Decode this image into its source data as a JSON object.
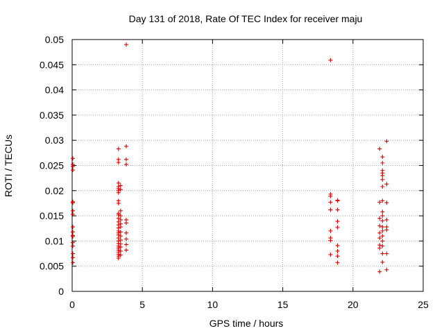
{
  "chart_data": {
    "type": "scatter",
    "title": "Day 131 of 2018, Rate Of TEC Index for receiver maju",
    "xlabel": "GPS time / hours",
    "ylabel": "ROTI / TECUs",
    "xlim": [
      0,
      25
    ],
    "ylim": [
      0,
      0.05
    ],
    "xticks": [
      0,
      5,
      10,
      15,
      20,
      25
    ],
    "xtick_labels": [
      "0",
      "5",
      "10",
      "15",
      "20",
      "25"
    ],
    "yticks": [
      0,
      0.005,
      0.01,
      0.015,
      0.02,
      0.025,
      0.03,
      0.035,
      0.04,
      0.045,
      0.05
    ],
    "ytick_labels": [
      "0",
      "0.005",
      "0.01",
      "0.015",
      "0.02",
      "0.025",
      "0.03",
      "0.035",
      "0.04",
      "0.045",
      "0.05"
    ],
    "grid": true,
    "marker": "+",
    "color": "#dd0000",
    "points": [
      [
        0.05,
        0.0264
      ],
      [
        0.05,
        0.0252
      ],
      [
        0.05,
        0.0248
      ],
      [
        0.05,
        0.0241
      ],
      [
        0.05,
        0.0178
      ],
      [
        0.05,
        0.0176
      ],
      [
        0.05,
        0.016
      ],
      [
        0.05,
        0.0153
      ],
      [
        0.05,
        0.0128
      ],
      [
        0.05,
        0.0118
      ],
      [
        0.05,
        0.0111
      ],
      [
        0.05,
        0.0109
      ],
      [
        0.05,
        0.0097
      ],
      [
        0.05,
        0.009
      ],
      [
        0.05,
        0.0075
      ],
      [
        0.05,
        0.0067
      ],
      [
        0.05,
        0.0057
      ],
      [
        3.3,
        0.0283
      ],
      [
        3.3,
        0.0262
      ],
      [
        3.3,
        0.0256
      ],
      [
        3.3,
        0.0215
      ],
      [
        3.3,
        0.0208
      ],
      [
        3.3,
        0.0204
      ],
      [
        3.3,
        0.02
      ],
      [
        3.3,
        0.0196
      ],
      [
        3.3,
        0.018
      ],
      [
        3.3,
        0.0175
      ],
      [
        3.3,
        0.0155
      ],
      [
        3.3,
        0.0152
      ],
      [
        3.3,
        0.0145
      ],
      [
        3.3,
        0.0138
      ],
      [
        3.3,
        0.0132
      ],
      [
        3.3,
        0.0126
      ],
      [
        3.3,
        0.012
      ],
      [
        3.3,
        0.0116
      ],
      [
        3.3,
        0.0112
      ],
      [
        3.3,
        0.0106
      ],
      [
        3.3,
        0.01
      ],
      [
        3.3,
        0.0095
      ],
      [
        3.3,
        0.009
      ],
      [
        3.3,
        0.0086
      ],
      [
        3.3,
        0.0082
      ],
      [
        3.3,
        0.0078
      ],
      [
        3.3,
        0.0074
      ],
      [
        3.3,
        0.007
      ],
      [
        3.3,
        0.0066
      ],
      [
        3.45,
        0.021
      ],
      [
        3.45,
        0.0202
      ],
      [
        3.45,
        0.016
      ],
      [
        3.45,
        0.015
      ],
      [
        3.45,
        0.0142
      ],
      [
        3.45,
        0.0134
      ],
      [
        3.45,
        0.0128
      ],
      [
        3.45,
        0.0118
      ],
      [
        3.45,
        0.011
      ],
      [
        3.45,
        0.0102
      ],
      [
        3.45,
        0.0094
      ],
      [
        3.45,
        0.0088
      ],
      [
        3.45,
        0.008
      ],
      [
        3.45,
        0.0072
      ],
      [
        3.85,
        0.049
      ],
      [
        3.85,
        0.0288
      ],
      [
        3.85,
        0.0262
      ],
      [
        3.85,
        0.0252
      ],
      [
        3.85,
        0.0142
      ],
      [
        3.85,
        0.0136
      ],
      [
        3.85,
        0.0116
      ],
      [
        3.85,
        0.0104
      ],
      [
        3.85,
        0.0093
      ],
      [
        3.85,
        0.0082
      ],
      [
        18.4,
        0.0459
      ],
      [
        18.4,
        0.0193
      ],
      [
        18.4,
        0.0189
      ],
      [
        18.4,
        0.0177
      ],
      [
        18.4,
        0.0162
      ],
      [
        18.4,
        0.012
      ],
      [
        18.4,
        0.0106
      ],
      [
        18.4,
        0.0101
      ],
      [
        18.4,
        0.0073
      ],
      [
        18.9,
        0.0181
      ],
      [
        18.9,
        0.018
      ],
      [
        18.9,
        0.0162
      ],
      [
        18.9,
        0.0139
      ],
      [
        18.9,
        0.0127
      ],
      [
        18.9,
        0.0091
      ],
      [
        18.9,
        0.008
      ],
      [
        18.9,
        0.007
      ],
      [
        18.9,
        0.0057
      ],
      [
        21.9,
        0.0283
      ],
      [
        21.9,
        0.0177
      ],
      [
        21.9,
        0.0145
      ],
      [
        21.9,
        0.013
      ],
      [
        21.9,
        0.0116
      ],
      [
        21.9,
        0.0106
      ],
      [
        21.9,
        0.0092
      ],
      [
        21.9,
        0.0086
      ],
      [
        21.9,
        0.0039
      ],
      [
        22.1,
        0.0267
      ],
      [
        22.1,
        0.0255
      ],
      [
        22.1,
        0.024
      ],
      [
        22.1,
        0.0235
      ],
      [
        22.1,
        0.023
      ],
      [
        22.1,
        0.0222
      ],
      [
        22.1,
        0.0208
      ],
      [
        22.1,
        0.018
      ],
      [
        22.1,
        0.0158
      ],
      [
        22.1,
        0.015
      ],
      [
        22.1,
        0.014
      ],
      [
        22.1,
        0.0128
      ],
      [
        22.1,
        0.012
      ],
      [
        22.1,
        0.011
      ],
      [
        22.1,
        0.01
      ],
      [
        22.1,
        0.009
      ],
      [
        22.1,
        0.0075
      ],
      [
        22.1,
        0.0058
      ],
      [
        22.4,
        0.0298
      ],
      [
        22.4,
        0.0213
      ],
      [
        22.4,
        0.0176
      ],
      [
        22.4,
        0.0142
      ],
      [
        22.4,
        0.0128
      ],
      [
        22.4,
        0.0122
      ],
      [
        22.4,
        0.0075
      ],
      [
        22.4,
        0.0043
      ]
    ]
  }
}
